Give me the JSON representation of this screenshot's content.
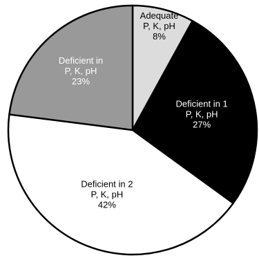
{
  "chart_data": {
    "type": "pie",
    "slices": [
      {
        "label_lines": [
          "Adequate",
          "P, K, pH",
          "8%"
        ],
        "value": 8,
        "fill": "#dcdcdc",
        "text_color": "#000000"
      },
      {
        "label_lines": [
          "Deficient in 1",
          "P, K, pH",
          "27%"
        ],
        "value": 27,
        "fill": "#000000",
        "text_color": "#ffffff"
      },
      {
        "label_lines": [
          "Deficient in 2",
          "P, K, pH",
          "42%"
        ],
        "value": 42,
        "fill": "#ffffff",
        "text_color": "#000000"
      },
      {
        "label_lines": [
          "Deficient in",
          "P, K, pH",
          "23%"
        ],
        "value": 23,
        "fill": "#999999",
        "text_color": "#ffffff"
      }
    ],
    "start": "12 o'clock",
    "direction": "clockwise",
    "legend": "none"
  }
}
